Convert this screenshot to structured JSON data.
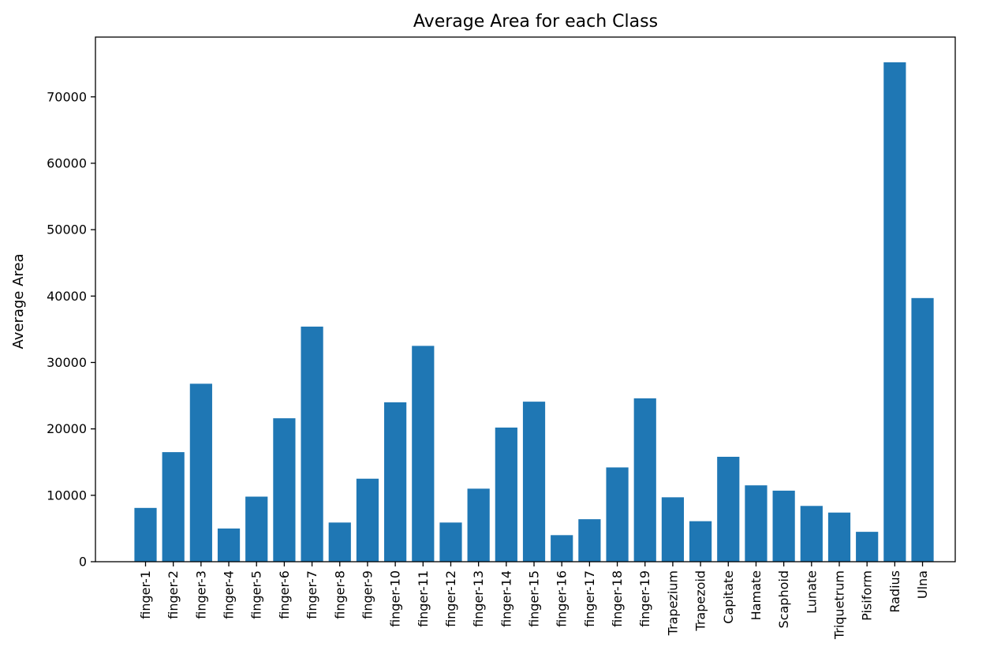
{
  "chart_data": {
    "type": "bar",
    "title": "Average Area for each Class",
    "xlabel": "",
    "ylabel": "Average Area",
    "color": "#1f77b4",
    "ylim": [
      0,
      79000
    ],
    "yticks": [
      0,
      10000,
      20000,
      30000,
      40000,
      50000,
      60000,
      70000
    ],
    "grid": false,
    "categories": [
      "finger-1",
      "finger-2",
      "finger-3",
      "finger-4",
      "finger-5",
      "finger-6",
      "finger-7",
      "finger-8",
      "finger-9",
      "finger-10",
      "finger-11",
      "finger-12",
      "finger-13",
      "finger-14",
      "finger-15",
      "finger-16",
      "finger-17",
      "finger-18",
      "finger-19",
      "Trapezium",
      "Trapezoid",
      "Capitate",
      "Hamate",
      "Scaphoid",
      "Lunate",
      "Triquetrum",
      "Pisiform",
      "Radius",
      "Ulna"
    ],
    "values": [
      8100,
      16500,
      26800,
      5000,
      9800,
      21600,
      35400,
      5900,
      12500,
      24000,
      32500,
      5900,
      11000,
      20200,
      24100,
      4000,
      6400,
      14200,
      24600,
      9700,
      6100,
      15800,
      11500,
      10700,
      8400,
      7400,
      4500,
      75200,
      39700
    ]
  }
}
